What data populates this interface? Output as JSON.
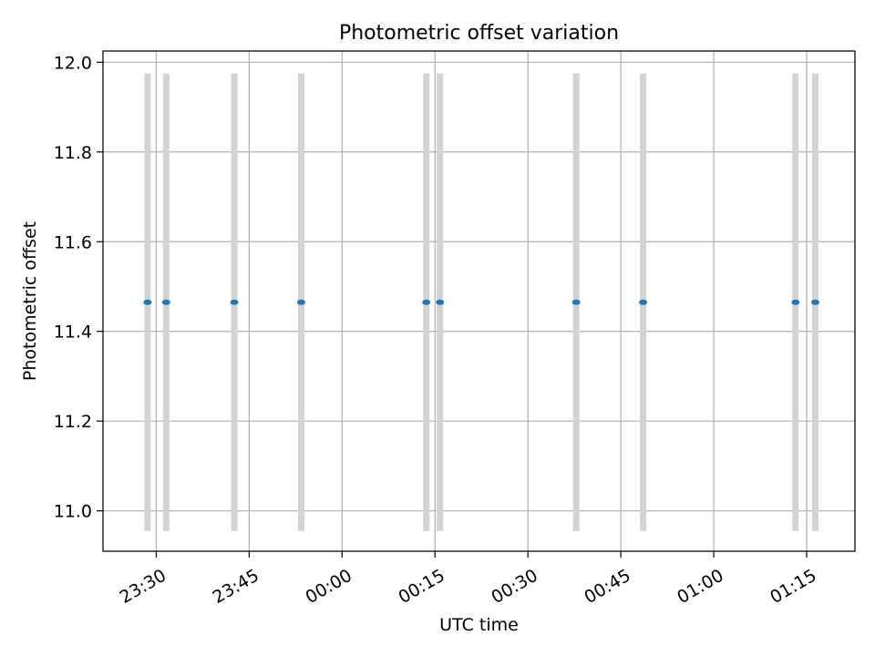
{
  "chart_data": {
    "type": "scatter",
    "title": "Photometric offset variation",
    "xlabel": "UTC time",
    "ylabel": "Photometric offset",
    "x_axis": {
      "kind": "time",
      "range": [
        "23:21:24",
        "01:22:48"
      ],
      "ticks": [
        "23:30",
        "23:45",
        "00:00",
        "00:15",
        "00:30",
        "00:45",
        "01:00",
        "01:15"
      ]
    },
    "y_axis": {
      "range": [
        10.91,
        12.025
      ],
      "ticks": [
        "11.0",
        "11.2",
        "11.4",
        "11.6",
        "11.8",
        "12.0"
      ]
    },
    "grid": true,
    "legend": "none",
    "colors": {
      "marker": "#1f77b4",
      "band": "#d3d3d3",
      "grid": "#b0b0b0"
    },
    "band_range": [
      10.955,
      11.975
    ],
    "points": [
      {
        "x": "23:28:36",
        "y": 11.465
      },
      {
        "x": "23:31:36",
        "y": 11.465
      },
      {
        "x": "23:42:36",
        "y": 11.465
      },
      {
        "x": "23:53:24",
        "y": 11.465
      },
      {
        "x": "00:13:36",
        "y": 11.465
      },
      {
        "x": "00:15:48",
        "y": 11.465
      },
      {
        "x": "00:37:48",
        "y": 11.465
      },
      {
        "x": "00:48:36",
        "y": 11.465
      },
      {
        "x": "01:13:12",
        "y": 11.465
      },
      {
        "x": "01:16:24",
        "y": 11.465
      }
    ]
  }
}
